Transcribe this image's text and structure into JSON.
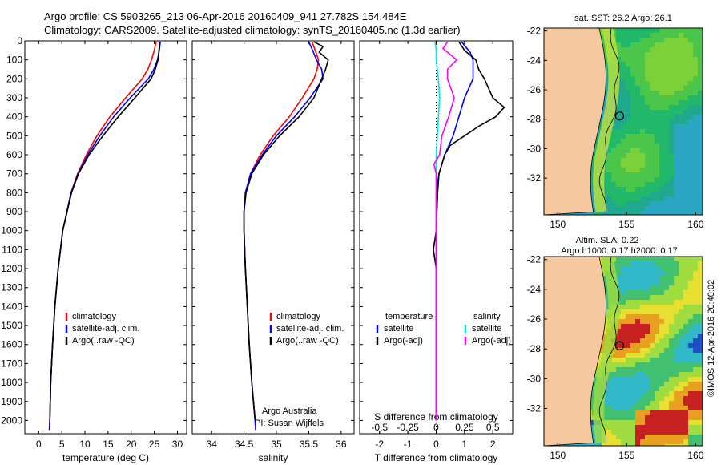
{
  "header": {
    "line1": "Argo profile: CS 5903265_213 06-Apr-2016 20160409_941 27.782S 154.484E",
    "line2": "Climatology: CARS2009. Satellite-adjusted climatology: synTS_20160405.nc (1.3d earlier)"
  },
  "colors": {
    "climatology": "#ff0000",
    "satellite": "#0000ff",
    "argo": "#000000",
    "satellite_salinity_diff": "#00e5e5",
    "argo_salinity_diff": "#ff00ff",
    "land": "#f5c8a0"
  },
  "footer": {
    "stamp": "©IMOS 12-Apr-2016 20:40:02",
    "institution": "Argo Australia",
    "pi": "PI: Susan Wijffels"
  },
  "chart_data": [
    {
      "type": "line",
      "xlabel": "temperature (deg C)",
      "xlim": [
        -3,
        32
      ],
      "xticks": [
        0,
        5,
        10,
        15,
        20,
        25,
        30
      ],
      "ylim": [
        2070,
        0
      ],
      "yticks": [
        0,
        100,
        200,
        300,
        400,
        500,
        600,
        700,
        800,
        900,
        1000,
        1100,
        1200,
        1300,
        1400,
        1500,
        1600,
        1700,
        1800,
        1900,
        2000
      ],
      "legend": [
        "climatology",
        "satellite-adj. clim.",
        "Argo(..raw -QC)"
      ],
      "legend_position": "lower-right",
      "series": [
        {
          "name": "climatology",
          "color": "#ff0000",
          "depth": [
            5,
            50,
            100,
            150,
            200,
            300,
            400,
            500,
            600,
            700,
            800,
            1000,
            1200,
            1400,
            1600,
            1800,
            2000,
            2050
          ],
          "values": [
            25.4,
            25.0,
            24.4,
            23.6,
            22.4,
            18.8,
            15.4,
            12.6,
            10.3,
            8.4,
            7.0,
            5.2,
            4.2,
            3.5,
            3.0,
            2.6,
            2.4,
            2.3
          ]
        },
        {
          "name": "satellite-adj. clim.",
          "color": "#0000ff",
          "depth": [
            5,
            50,
            100,
            150,
            200,
            300,
            400,
            500,
            600,
            700,
            800,
            1000,
            1200,
            1400,
            1600,
            1800,
            2000,
            2050
          ],
          "values": [
            26.3,
            26.1,
            25.7,
            24.9,
            23.7,
            19.8,
            16.2,
            13.2,
            10.6,
            8.5,
            7.0,
            5.2,
            4.2,
            3.5,
            3.0,
            2.6,
            2.4,
            2.3
          ]
        },
        {
          "name": "Argo(..raw -QC)",
          "color": "#000000",
          "depth": [
            5,
            50,
            100,
            150,
            200,
            300,
            400,
            500,
            600,
            700,
            800,
            1000,
            1200,
            1400,
            1600,
            1800,
            2000
          ],
          "values": [
            26.2,
            26.0,
            25.8,
            25.2,
            24.3,
            20.8,
            17.2,
            13.9,
            10.9,
            8.6,
            7.1,
            5.2,
            4.2,
            3.5,
            3.0,
            2.6,
            2.4
          ]
        }
      ]
    },
    {
      "type": "line",
      "xlabel": "salinity",
      "xlim": [
        33.7,
        36.2
      ],
      "xticks": [
        34,
        34.5,
        35,
        35.5,
        36
      ],
      "xticklabels": [
        "34",
        "34.5",
        "35",
        "35.5",
        "36"
      ],
      "ylim": [
        2070,
        0
      ],
      "legend": [
        "climatology",
        "satellite-adj. clim.",
        "Argo(..raw -QC)"
      ],
      "legend_position": "lower-right",
      "series": [
        {
          "name": "climatology",
          "color": "#ff0000",
          "depth": [
            5,
            50,
            100,
            150,
            200,
            300,
            400,
            500,
            600,
            700,
            800,
            900,
            1000,
            1200,
            1400,
            1600,
            1800,
            2000,
            2050
          ],
          "values": [
            35.55,
            35.6,
            35.65,
            35.63,
            35.58,
            35.4,
            35.2,
            34.95,
            34.75,
            34.6,
            34.52,
            34.5,
            34.5,
            34.52,
            34.55,
            34.58,
            34.62,
            34.67,
            34.68
          ]
        },
        {
          "name": "satellite-adj. clim.",
          "color": "#0000ff",
          "depth": [
            5,
            50,
            100,
            150,
            200,
            300,
            400,
            500,
            600,
            700,
            800,
            900,
            1000,
            1200,
            1400,
            1600,
            1800,
            2000,
            2050
          ],
          "values": [
            35.5,
            35.56,
            35.62,
            35.7,
            35.72,
            35.52,
            35.28,
            35.0,
            34.78,
            34.6,
            34.52,
            34.5,
            34.5,
            34.52,
            34.55,
            34.58,
            34.62,
            34.67,
            34.68
          ]
        },
        {
          "name": "Argo(..raw -QC)",
          "color": "#000000",
          "depth": [
            5,
            30,
            60,
            100,
            150,
            200,
            300,
            400,
            500,
            600,
            700,
            800,
            900,
            1000,
            1200,
            1400,
            1600,
            1800,
            2000
          ],
          "values": [
            35.58,
            35.72,
            35.66,
            35.8,
            35.76,
            35.7,
            35.58,
            35.35,
            35.05,
            34.8,
            34.62,
            34.53,
            34.5,
            34.5,
            34.52,
            34.55,
            34.58,
            34.62,
            34.67
          ]
        }
      ]
    },
    {
      "type": "line",
      "xlabel": "T difference from climatology",
      "xlabel_top": "S difference from climatology",
      "xlim": [
        -2.7,
        2.7
      ],
      "xticks": [
        -2,
        -1,
        0,
        1,
        2
      ],
      "xticks_top": [
        -0.5,
        -0.25,
        0,
        0.25,
        0.5
      ],
      "ylim": [
        2070,
        0
      ],
      "legend": [
        "temperature",
        "satellite",
        "Argo(-adj)",
        "salinity",
        "satellite",
        "Argo(-adj)"
      ],
      "series": [
        {
          "name": "satellite",
          "color": "#0000ff",
          "depth": [
            5,
            60,
            100,
            200,
            300,
            400,
            500,
            600,
            700,
            800,
            1000,
            1200,
            1400,
            1600,
            1800,
            2000
          ],
          "values": [
            0.9,
            1.2,
            1.3,
            1.3,
            1.0,
            0.8,
            0.6,
            0.3,
            0.1,
            0.0,
            0.0,
            0.0,
            0.0,
            0.0,
            0.0,
            0.0
          ]
        },
        {
          "name": "Argo(-adj)",
          "color": "#000000",
          "depth": [
            5,
            50,
            100,
            150,
            200,
            300,
            350,
            400,
            450,
            500,
            550,
            600,
            700,
            800,
            1000,
            1100,
            1200,
            1400,
            1600,
            1800,
            2000
          ],
          "values": [
            0.8,
            1.0,
            1.4,
            1.5,
            1.7,
            2.0,
            2.4,
            2.1,
            1.5,
            1.0,
            0.5,
            0.3,
            0.1,
            0.05,
            0.0,
            -0.1,
            0.0,
            0.0,
            0.0,
            0.0,
            0.0
          ]
        },
        {
          "name": "satellite",
          "color": "#00e5e5",
          "depth": [
            5,
            50,
            100,
            200,
            300,
            400,
            500,
            600,
            700,
            800,
            1000,
            1200,
            1400,
            1600,
            1800,
            2000
          ],
          "values": [
            -0.01,
            0.0,
            0.0,
            0.02,
            0.03,
            0.02,
            0.01,
            0.0,
            0.0,
            0.0,
            0.0,
            0.0,
            0.0,
            0.0,
            0.0,
            0.0
          ]
        },
        {
          "name": "Argo(-adj)",
          "color": "#ff00ff",
          "depth": [
            5,
            40,
            80,
            100,
            150,
            200,
            300,
            400,
            500,
            600,
            650,
            700,
            800,
            1000,
            1200,
            1400,
            1600,
            1800,
            2000
          ],
          "values": [
            0.1,
            0.06,
            0.14,
            0.18,
            0.1,
            0.1,
            0.16,
            0.11,
            0.05,
            0.03,
            -0.02,
            0.0,
            0.0,
            0.0,
            0.0,
            0.0,
            0.0,
            0.0,
            0.0
          ]
        }
      ]
    },
    {
      "type": "heatmap",
      "title": "sat. SST: 26.2 Argo: 26.1",
      "xlim": [
        149,
        160.5
      ],
      "ylim": [
        -34.5,
        -21.8
      ],
      "xticks": [
        150,
        155,
        160
      ],
      "yticks": [
        -22,
        -24,
        -26,
        -28,
        -30,
        -32
      ],
      "argo_position": [
        154.484,
        -27.782
      ]
    },
    {
      "type": "heatmap",
      "title": "Altim. SLA: 0.22",
      "subtitle": "Argo h1000: 0.17 h2000: 0.17",
      "xlim": [
        149,
        160.5
      ],
      "ylim": [
        -34.5,
        -21.8
      ],
      "xticks": [
        150,
        155,
        160
      ],
      "yticks": [
        -22,
        -24,
        -26,
        -28,
        -30,
        -32
      ],
      "argo_position": [
        154.484,
        -27.782
      ]
    }
  ]
}
